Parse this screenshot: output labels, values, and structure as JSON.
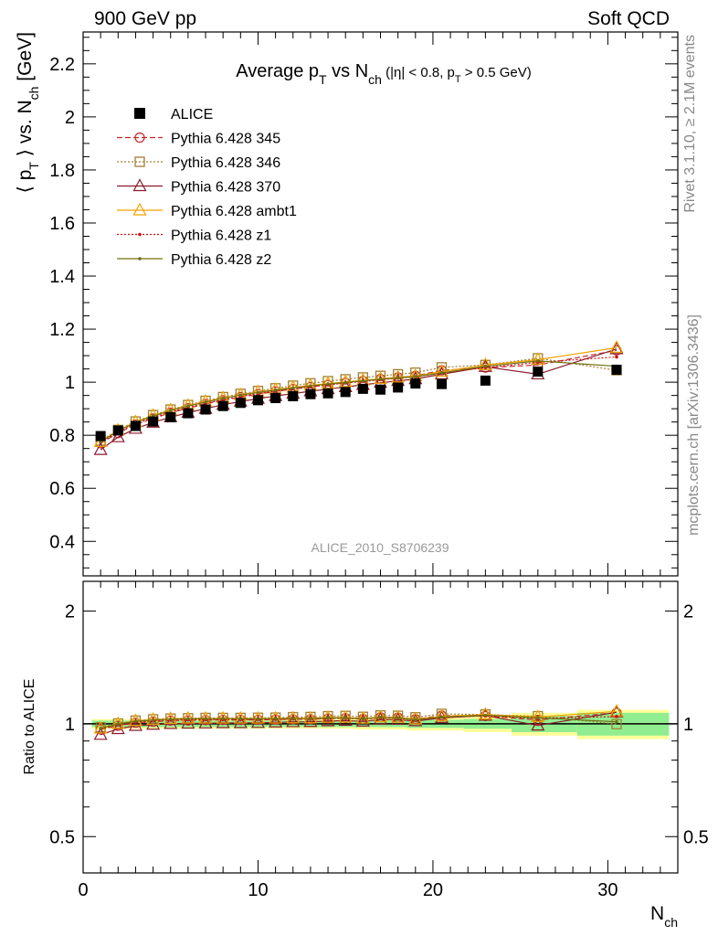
{
  "header": {
    "left": "900 GeV pp",
    "right": "Soft QCD"
  },
  "side_labels": {
    "rivet": "Rivet 3.1.10, ≥ 2.1M events",
    "mcplots": "mcplots.cern.ch [arXiv:1306.3436]"
  },
  "watermark": "ALICE_2010_S8706239",
  "title": {
    "main": "Average p",
    "sub1": "T",
    "mid": " vs N",
    "sub2": "ch",
    "cuts": " (|η| < 0.8, p",
    "sub3": "T",
    "cuts_end": " > 0.5 GeV)"
  },
  "ylabel": {
    "open": "⟨ p",
    "sub1": "T",
    "close": " ⟩ vs. N",
    "sub2": "ch",
    "unit": " [GeV]"
  },
  "ratio_ylabel": "Ratio to ALICE",
  "xlabel": {
    "main": "N",
    "sub": "ch"
  },
  "colors": {
    "data": "#000000",
    "p345": "#c0282d",
    "p346": "#a08030",
    "p370": "#8b1a2b",
    "ambt1": "#f0a000",
    "z1": "#d01010",
    "z2": "#707010",
    "band_stat": "#90ee90",
    "band_total": "#ffff99"
  },
  "chart_data": {
    "type": "scatter",
    "x": [
      1,
      2,
      3,
      4,
      5,
      6,
      7,
      8,
      9,
      10,
      11,
      12,
      13,
      14,
      15,
      16,
      17,
      18,
      19,
      20.5,
      23,
      26,
      30.5
    ],
    "xlim": [
      0,
      34
    ],
    "xticks": [
      0,
      10,
      20,
      30
    ],
    "ylim": [
      0.27,
      2.32
    ],
    "yticks": [
      0.4,
      0.6,
      0.8,
      1,
      1.2,
      1.4,
      1.6,
      1.8,
      2,
      2.2
    ],
    "ratio_ylim": [
      0.4,
      2.4
    ],
    "ratio_yticks": [
      0.5,
      1,
      2
    ],
    "legend_position": "top-left",
    "data": {
      "name": "ALICE",
      "values": [
        0.797,
        0.818,
        0.835,
        0.852,
        0.868,
        0.883,
        0.897,
        0.91,
        0.922,
        0.932,
        0.94,
        0.947,
        0.955,
        0.958,
        0.963,
        0.975,
        0.972,
        0.98,
        0.995,
        0.993,
        1.006,
        1.04,
        1.047
      ],
      "band_stat": [
        0.02,
        0.02,
        0.02,
        0.02,
        0.02,
        0.02,
        0.02,
        0.02,
        0.02,
        0.02,
        0.02,
        0.02,
        0.02,
        0.02,
        0.02,
        0.02,
        0.02,
        0.02,
        0.025,
        0.025,
        0.03,
        0.05,
        0.07
      ],
      "band_total": [
        0.03,
        0.03,
        0.03,
        0.03,
        0.03,
        0.03,
        0.03,
        0.03,
        0.03,
        0.03,
        0.03,
        0.03,
        0.03,
        0.03,
        0.03,
        0.035,
        0.035,
        0.035,
        0.04,
        0.04,
        0.05,
        0.07,
        0.09
      ]
    },
    "series": [
      {
        "key": "p345",
        "name": "Pythia 6.428 345",
        "line": "dashed",
        "marker": "circle",
        "values": [
          0.77,
          0.808,
          0.84,
          0.863,
          0.885,
          0.902,
          0.918,
          0.932,
          0.944,
          0.955,
          0.965,
          0.974,
          0.982,
          0.99,
          0.998,
          1.005,
          1.012,
          1.018,
          1.024,
          1.045,
          1.055,
          1.065,
          1.12
        ],
        "ratio": [
          0.966,
          0.988,
          1.006,
          1.013,
          1.02,
          1.021,
          1.023,
          1.024,
          1.024,
          1.025,
          1.027,
          1.028,
          1.028,
          1.033,
          1.036,
          1.031,
          1.041,
          1.039,
          1.029,
          1.052,
          1.049,
          1.024,
          1.07
        ]
      },
      {
        "key": "p346",
        "name": "Pythia 6.428 346",
        "line": "dotted",
        "marker": "square",
        "values": [
          0.78,
          0.82,
          0.852,
          0.876,
          0.897,
          0.914,
          0.93,
          0.944,
          0.956,
          0.967,
          0.977,
          0.987,
          0.996,
          1.004,
          1.011,
          1.018,
          1.024,
          1.03,
          1.036,
          1.056,
          1.065,
          1.09,
          1.045
        ],
        "ratio": [
          0.979,
          1.002,
          1.02,
          1.028,
          1.033,
          1.035,
          1.037,
          1.037,
          1.037,
          1.038,
          1.039,
          1.042,
          1.043,
          1.048,
          1.05,
          1.044,
          1.053,
          1.051,
          1.041,
          1.063,
          1.059,
          1.048,
          0.998
        ]
      },
      {
        "key": "p370",
        "name": "Pythia 6.428 370",
        "line": "solid",
        "marker": "triangle",
        "values": [
          0.745,
          0.793,
          0.825,
          0.848,
          0.868,
          0.885,
          0.9,
          0.915,
          0.927,
          0.938,
          0.948,
          0.957,
          0.966,
          0.974,
          0.982,
          0.99,
          0.998,
          1.005,
          1.012,
          1.03,
          1.058,
          1.03,
          1.125
        ],
        "ratio": [
          0.935,
          0.969,
          0.988,
          0.995,
          1.0,
          1.002,
          1.003,
          1.005,
          1.005,
          1.006,
          1.009,
          1.011,
          1.012,
          1.017,
          1.02,
          1.015,
          1.027,
          1.026,
          1.017,
          1.037,
          1.052,
          0.99,
          1.074
        ]
      },
      {
        "key": "ambt1",
        "name": "Pythia 6.428 ambt1",
        "line": "solid",
        "marker": "triangle",
        "values": [
          0.775,
          0.818,
          0.85,
          0.874,
          0.895,
          0.912,
          0.927,
          0.94,
          0.952,
          0.963,
          0.972,
          0.98,
          0.988,
          0.995,
          1.001,
          1.007,
          1.013,
          1.018,
          1.023,
          1.04,
          1.065,
          1.085,
          1.13
        ],
        "ratio": [
          0.972,
          1.0,
          1.018,
          1.026,
          1.031,
          1.033,
          1.033,
          1.033,
          1.033,
          1.033,
          1.034,
          1.035,
          1.035,
          1.039,
          1.04,
          1.033,
          1.042,
          1.039,
          1.028,
          1.047,
          1.059,
          1.043,
          1.079
        ]
      },
      {
        "key": "z1",
        "name": "Pythia 6.428 z1",
        "line": "dotted",
        "marker": "dot",
        "values": [
          0.772,
          0.812,
          0.843,
          0.867,
          0.888,
          0.905,
          0.92,
          0.934,
          0.946,
          0.957,
          0.966,
          0.975,
          0.983,
          0.99,
          0.997,
          1.003,
          1.009,
          1.015,
          1.02,
          1.035,
          1.055,
          1.075,
          1.095
        ],
        "ratio": [
          0.969,
          0.993,
          1.01,
          1.018,
          1.023,
          1.025,
          1.026,
          1.026,
          1.026,
          1.027,
          1.028,
          1.03,
          1.029,
          1.033,
          1.035,
          1.029,
          1.038,
          1.036,
          1.025,
          1.042,
          1.049,
          1.034,
          1.046
        ]
      },
      {
        "key": "z2",
        "name": "Pythia 6.428 z2",
        "line": "solid",
        "marker": "dot",
        "values": [
          0.775,
          0.816,
          0.848,
          0.872,
          0.893,
          0.91,
          0.925,
          0.939,
          0.951,
          0.961,
          0.97,
          0.978,
          0.986,
          0.993,
          0.999,
          1.005,
          1.011,
          1.016,
          1.021,
          1.035,
          1.06,
          1.08,
          1.06
        ],
        "ratio": [
          0.972,
          0.998,
          1.016,
          1.023,
          1.029,
          1.031,
          1.031,
          1.032,
          1.032,
          1.031,
          1.032,
          1.033,
          1.032,
          1.037,
          1.037,
          1.031,
          1.04,
          1.037,
          1.026,
          1.042,
          1.054,
          1.038,
          1.012
        ]
      }
    ]
  }
}
